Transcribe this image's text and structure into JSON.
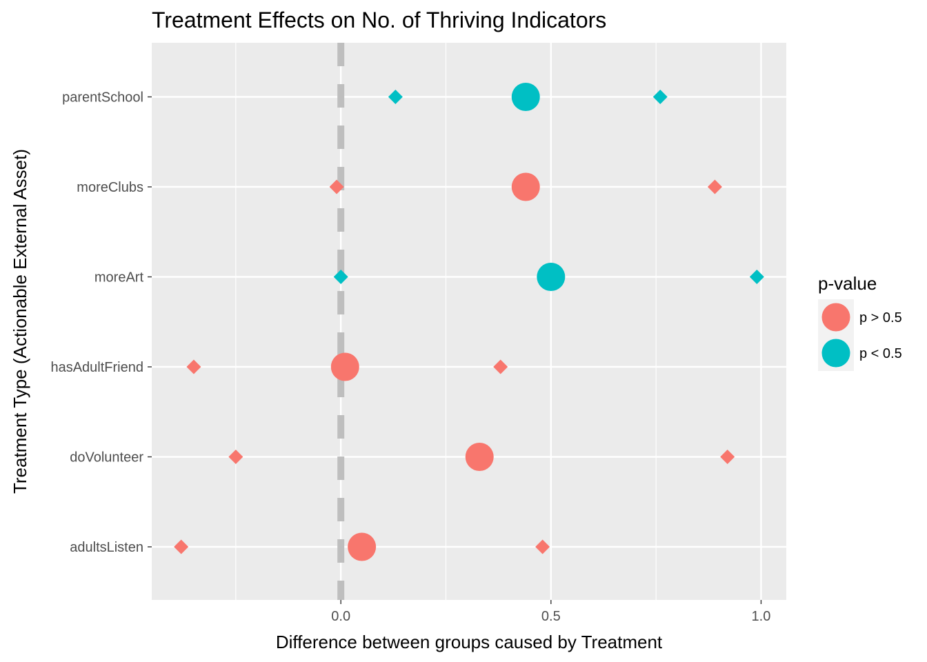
{
  "chart_data": {
    "type": "scatter",
    "title": "Treatment Effects on No. of Thriving Indicators",
    "xlabel": "Difference between groups caused by Treatment",
    "ylabel": "Treatment Type (Actionable External Asset)",
    "xlim": [
      -0.45,
      1.06
    ],
    "x_ticks": [
      0.0,
      0.5,
      1.0
    ],
    "x_tick_labels": [
      "0.0",
      "0.5",
      "1.0"
    ],
    "categories": [
      "adultsListen",
      "doVolunteer",
      "hasAdultFriend",
      "moreArt",
      "moreClubs",
      "parentSchool"
    ],
    "reference_line": {
      "x": 0,
      "style": "dashed",
      "color": "#bebebe"
    },
    "grid": true,
    "legend": {
      "title": "p-value",
      "position": "right",
      "items": [
        {
          "label": "p > 0.5",
          "color": "#F8766D"
        },
        {
          "label": "p < 0.5",
          "color": "#00BFC4"
        }
      ]
    },
    "colors": {
      "p > 0.5": "#F8766D",
      "p < 0.5": "#00BFC4"
    },
    "points": [
      {
        "category": "adultsListen",
        "estimate": 0.05,
        "lower": -0.38,
        "upper": 0.48,
        "group": "p > 0.5"
      },
      {
        "category": "doVolunteer",
        "estimate": 0.33,
        "lower": -0.25,
        "upper": 0.92,
        "group": "p > 0.5"
      },
      {
        "category": "hasAdultFriend",
        "estimate": 0.01,
        "lower": -0.35,
        "upper": 0.38,
        "group": "p > 0.5"
      },
      {
        "category": "moreArt",
        "estimate": 0.5,
        "lower": 0.0,
        "upper": 0.99,
        "group": "p < 0.5"
      },
      {
        "category": "moreClubs",
        "estimate": 0.44,
        "lower": -0.01,
        "upper": 0.89,
        "group": "p > 0.5"
      },
      {
        "category": "parentSchool",
        "estimate": 0.44,
        "lower": 0.13,
        "upper": 0.76,
        "group": "p < 0.5"
      }
    ]
  }
}
